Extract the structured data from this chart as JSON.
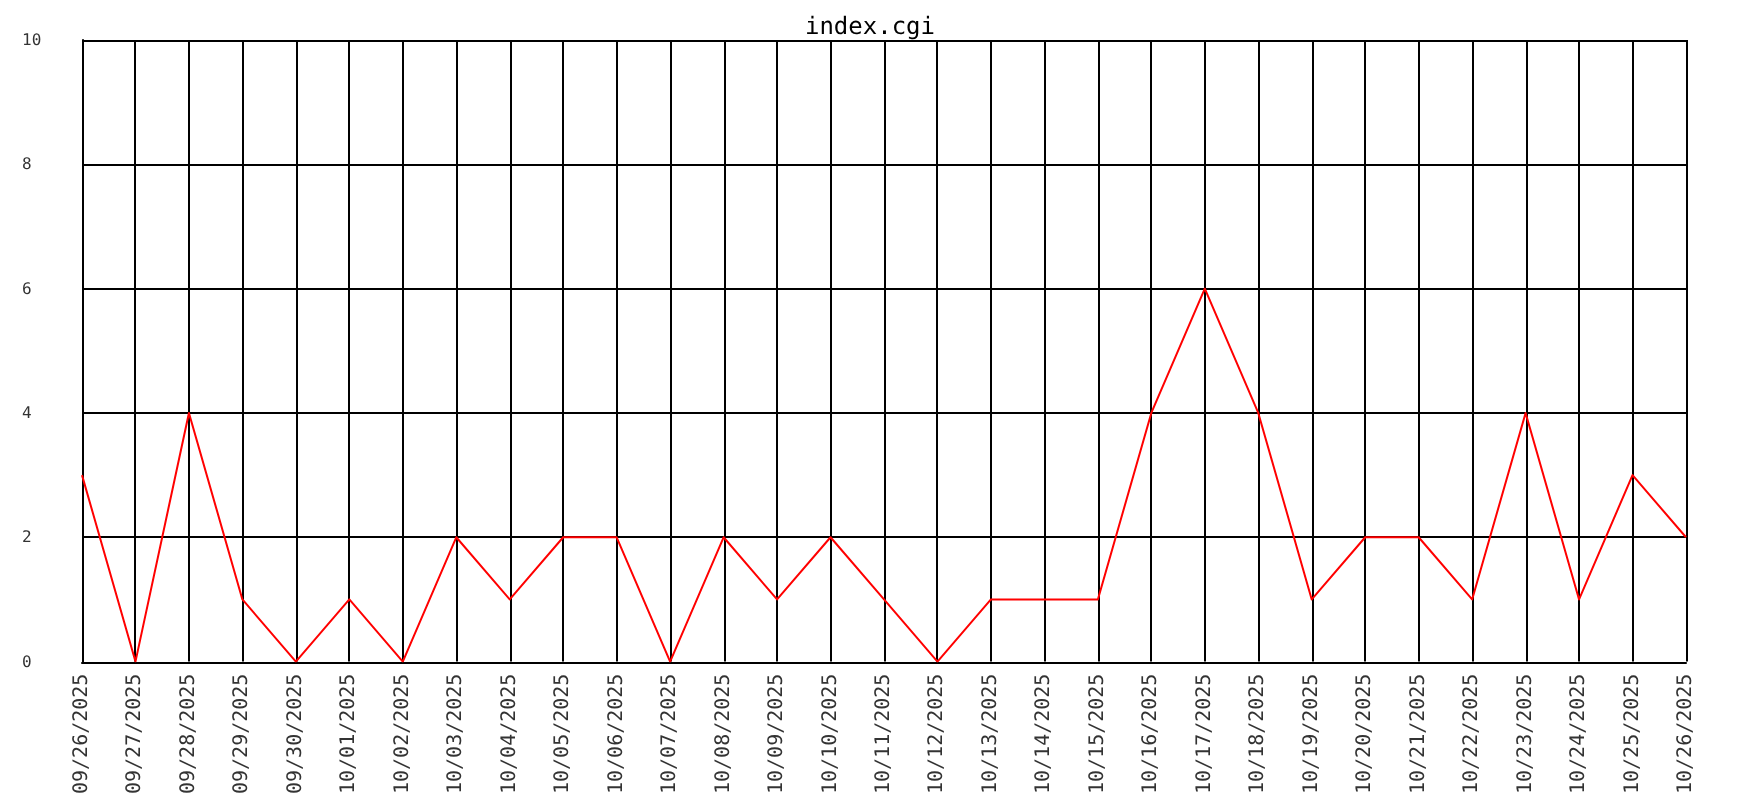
{
  "chart_data": {
    "type": "line",
    "title": "index.cgi",
    "categories": [
      "09/26/2025",
      "09/27/2025",
      "09/28/2025",
      "09/29/2025",
      "09/30/2025",
      "10/01/2025",
      "10/02/2025",
      "10/03/2025",
      "10/04/2025",
      "10/05/2025",
      "10/06/2025",
      "10/07/2025",
      "10/08/2025",
      "10/09/2025",
      "10/10/2025",
      "10/11/2025",
      "10/12/2025",
      "10/13/2025",
      "10/14/2025",
      "10/15/2025",
      "10/16/2025",
      "10/17/2025",
      "10/18/2025",
      "10/19/2025",
      "10/20/2025",
      "10/21/2025",
      "10/22/2025",
      "10/23/2025",
      "10/24/2025",
      "10/25/2025",
      "10/26/2025"
    ],
    "series": [
      {
        "color": "#ff0000",
        "values": [
          3,
          0,
          4,
          1,
          0,
          1,
          0,
          2,
          1,
          2,
          2,
          0,
          2,
          1,
          2,
          1,
          0,
          1,
          1,
          1,
          4,
          6,
          4,
          1,
          2,
          2,
          1,
          4,
          1,
          3,
          2
        ]
      }
    ],
    "ylim": [
      0,
      10
    ],
    "yticks": [
      0,
      2,
      4,
      6,
      8,
      10
    ],
    "grid": true,
    "marker": "none",
    "line_style": "solid"
  }
}
